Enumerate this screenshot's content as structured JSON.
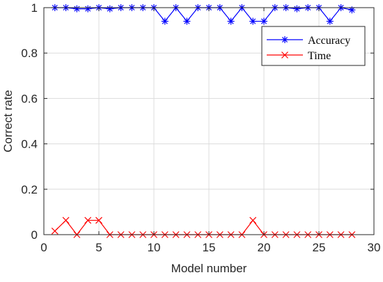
{
  "chart_data": {
    "type": "line",
    "title": "",
    "xlabel": "Model number",
    "ylabel": "Correct rate",
    "xlim": [
      0,
      30
    ],
    "ylim": [
      0,
      1
    ],
    "xticks": [
      0,
      5,
      10,
      15,
      20,
      25,
      30
    ],
    "yticks": [
      0,
      0.2,
      0.4,
      0.6,
      0.8,
      1
    ],
    "ytick_labels": [
      "0",
      "0.2",
      "0.4",
      "0.6",
      "0.8",
      "1"
    ],
    "grid": true,
    "legend_position": "top-right",
    "x": [
      1,
      2,
      3,
      4,
      5,
      6,
      7,
      8,
      9,
      10,
      11,
      12,
      13,
      14,
      15,
      16,
      17,
      18,
      19,
      20,
      21,
      22,
      23,
      24,
      25,
      26,
      27,
      28
    ],
    "series": [
      {
        "name": "Accuracy",
        "color": "#0000ff",
        "marker": "asterisk",
        "values": [
          1,
          1,
          0.995,
          0.995,
          1,
          0.995,
          1,
          1,
          1,
          1,
          0.94,
          1,
          0.94,
          1,
          1,
          1,
          0.94,
          1,
          0.94,
          0.94,
          1,
          1,
          0.995,
          1,
          1,
          0.94,
          1,
          0.99
        ]
      },
      {
        "name": "Time",
        "color": "#ff0000",
        "marker": "cross",
        "values": [
          0.016,
          0.063,
          0.0,
          0.063,
          0.063,
          0.0,
          0.0,
          0.0,
          0.0,
          0.0,
          0.0,
          0.0,
          0.0,
          0.0,
          0.0,
          0.0,
          0.0,
          0.0,
          0.063,
          0.0,
          0.0,
          0.0,
          0.0,
          0.0,
          0.0,
          0.0,
          0.0,
          0.0
        ]
      }
    ]
  }
}
